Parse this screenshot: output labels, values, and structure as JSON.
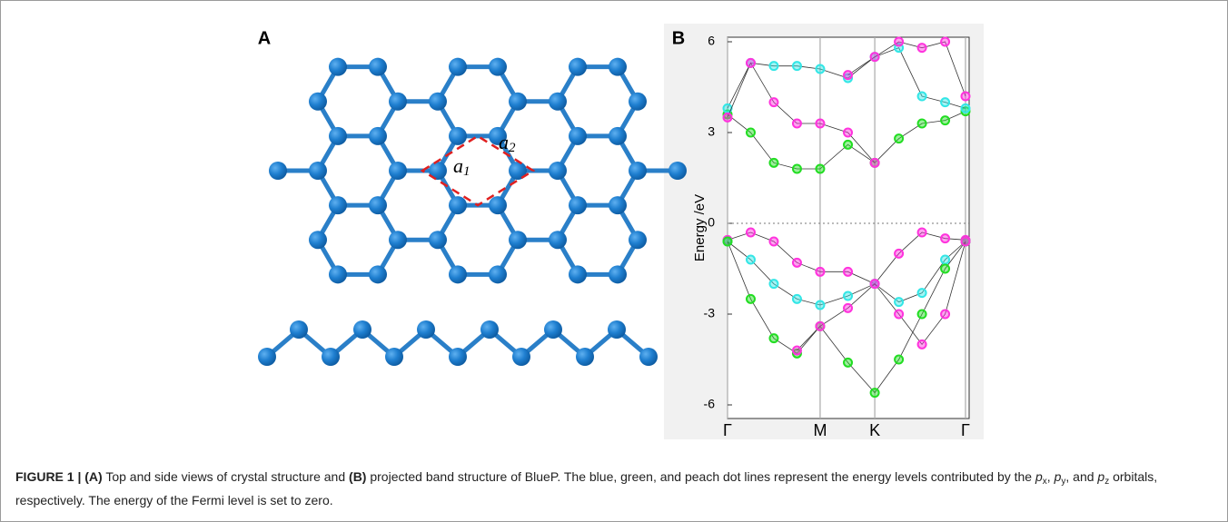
{
  "panel_labels": [
    "A",
    "B"
  ],
  "panel_a": {
    "lattice_labels": [
      {
        "letter": "a",
        "index": "1"
      },
      {
        "letter": "a",
        "index": "2"
      }
    ]
  },
  "chart_data": {
    "type": "line",
    "y_label": "Energy /eV",
    "x": [
      0,
      0.25,
      0.5,
      0.75,
      1,
      1.3,
      1.59,
      1.85,
      2.1,
      2.35,
      2.57
    ],
    "xlim": [
      0,
      2.57
    ],
    "xticks": [
      {
        "value": 0,
        "label": "Γ"
      },
      {
        "value": 1,
        "label": "M"
      },
      {
        "value": 1.59,
        "label": "K"
      },
      {
        "value": 2.57,
        "label": "Γ"
      }
    ],
    "ylim": [
      -6.45,
      6.15
    ],
    "yticks": [
      6,
      3,
      0,
      -3,
      -6
    ],
    "fermi_level": 0,
    "series": [
      {
        "color": "#ff33dd",
        "values": [
          -0.55,
          -0.3,
          -0.6,
          -1.3,
          -1.6,
          -1.6,
          -2.0,
          -1.0,
          -0.3,
          -0.5,
          -0.55
        ]
      },
      {
        "color": "#33e6e6",
        "values": [
          -0.6,
          -1.2,
          -2.0,
          -2.5,
          -2.7,
          -2.4,
          -2.0,
          -2.6,
          -2.3,
          -1.2,
          -0.6
        ]
      },
      {
        "color": "#22dd22",
        "values": [
          -0.6,
          -2.5,
          -3.8,
          -4.3,
          -3.4,
          -4.6,
          -5.6,
          -4.5,
          -3.0,
          -1.5,
          -0.6
        ]
      },
      {
        "color": "#ff33dd",
        "values": [
          null,
          null,
          null,
          -4.2,
          -3.4,
          -2.8,
          -2.0,
          -3.0,
          -4.0,
          -3.0,
          -0.6
        ]
      },
      {
        "color": "#22dd22",
        "values": [
          3.6,
          3.0,
          2.0,
          1.8,
          1.8,
          2.6,
          2.0,
          2.8,
          3.3,
          3.4,
          3.7
        ]
      },
      {
        "color": "#33e6e6",
        "values": [
          3.8,
          5.3,
          5.2,
          5.2,
          5.1,
          4.8,
          5.5,
          5.8,
          4.2,
          4.0,
          3.8
        ]
      },
      {
        "color": "#ff33dd",
        "values": [
          3.5,
          5.3,
          4.0,
          3.3,
          3.3,
          3.0,
          2.0,
          null,
          null,
          null,
          null
        ]
      },
      {
        "color": "#ff33dd",
        "values": [
          null,
          null,
          null,
          null,
          null,
          4.9,
          5.5,
          6.0,
          5.8,
          6.0,
          4.2
        ]
      }
    ]
  },
  "caption": [
    {
      "style": "b",
      "text": "FIGURE 1 | (A)"
    },
    {
      "style": "n",
      "text": " Top and side views of crystal structure and "
    },
    {
      "style": "b",
      "text": "(B)"
    },
    {
      "style": "n",
      "text": " projected band structure of BlueP. The blue, green, and peach dot lines represent the energy levels contributed by the "
    },
    {
      "style": "i",
      "text": "p"
    },
    {
      "style": "sub",
      "text": "x"
    },
    {
      "style": "n",
      "text": ", "
    },
    {
      "style": "i",
      "text": "p"
    },
    {
      "style": "sub",
      "text": "y"
    },
    {
      "style": "n",
      "text": ", and "
    },
    {
      "style": "i",
      "text": "p"
    },
    {
      "style": "sub",
      "text": "z"
    },
    {
      "style": "n",
      "text": " orbitals, respectively. The energy of the Fermi level is set to zero."
    }
  ]
}
